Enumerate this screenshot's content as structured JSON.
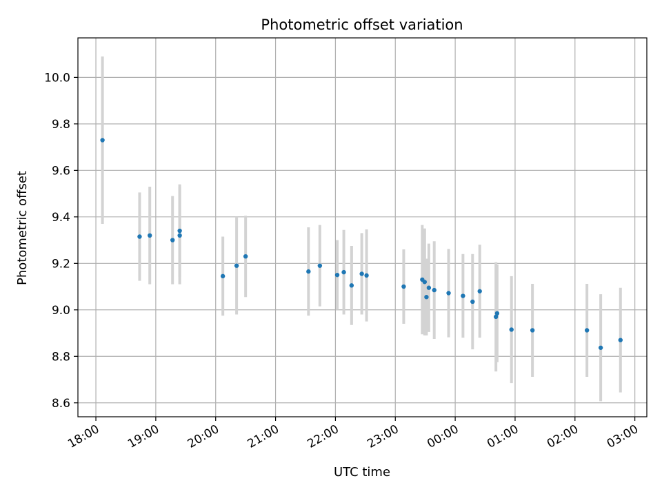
{
  "chart_data": {
    "type": "scatter",
    "title": "Photometric offset variation",
    "xlabel": "UTC time",
    "ylabel": "Photometric offset",
    "grid": true,
    "x_tick_labels": [
      "18:00",
      "19:00",
      "20:00",
      "21:00",
      "22:00",
      "23:00",
      "00:00",
      "01:00",
      "02:00",
      "03:00"
    ],
    "y_tick_labels": [
      "8.6",
      "8.8",
      "9.0",
      "9.2",
      "9.4",
      "9.6",
      "9.8",
      "10.0"
    ],
    "x_unit": "hours since 18:00 UTC",
    "xlim": [
      -0.3,
      9.2
    ],
    "ylim": [
      8.54,
      10.17
    ],
    "colors": {
      "points": "#1f77b4",
      "errorbars": "#d3d3d3",
      "grid": "#b0b0b0"
    },
    "series": [
      {
        "points": [
          {
            "x": 0.11,
            "y": 9.73,
            "err": 0.36
          },
          {
            "x": 0.73,
            "y": 9.315,
            "err": 0.19
          },
          {
            "x": 0.9,
            "y": 9.32,
            "err": 0.21
          },
          {
            "x": 1.28,
            "y": 9.3,
            "err": 0.19
          },
          {
            "x": 1.4,
            "y": 9.32,
            "err": 0.21
          },
          {
            "x": 1.4,
            "y": 9.34,
            "err": 0.2
          },
          {
            "x": 2.12,
            "y": 9.145,
            "err": 0.17
          },
          {
            "x": 2.35,
            "y": 9.19,
            "err": 0.21
          },
          {
            "x": 2.5,
            "y": 9.23,
            "err": 0.175
          },
          {
            "x": 3.55,
            "y": 9.165,
            "err": 0.19
          },
          {
            "x": 3.74,
            "y": 9.19,
            "err": 0.175
          },
          {
            "x": 4.03,
            "y": 9.15,
            "err": 0.15
          },
          {
            "x": 4.14,
            "y": 9.162,
            "err": 0.182
          },
          {
            "x": 4.27,
            "y": 9.105,
            "err": 0.17
          },
          {
            "x": 4.44,
            "y": 9.155,
            "err": 0.175
          },
          {
            "x": 4.52,
            "y": 9.148,
            "err": 0.198
          },
          {
            "x": 5.14,
            "y": 9.1,
            "err": 0.16
          },
          {
            "x": 5.45,
            "y": 9.13,
            "err": 0.235
          },
          {
            "x": 5.49,
            "y": 9.12,
            "err": 0.23
          },
          {
            "x": 5.52,
            "y": 9.055,
            "err": 0.165
          },
          {
            "x": 5.56,
            "y": 9.095,
            "err": 0.19
          },
          {
            "x": 5.65,
            "y": 9.085,
            "err": 0.21
          },
          {
            "x": 5.89,
            "y": 9.072,
            "err": 0.19
          },
          {
            "x": 6.13,
            "y": 9.06,
            "err": 0.18
          },
          {
            "x": 6.29,
            "y": 9.035,
            "err": 0.205
          },
          {
            "x": 6.41,
            "y": 9.08,
            "err": 0.2
          },
          {
            "x": 6.68,
            "y": 8.97,
            "err": 0.235
          },
          {
            "x": 6.7,
            "y": 8.985,
            "err": 0.21
          },
          {
            "x": 6.94,
            "y": 8.915,
            "err": 0.23
          },
          {
            "x": 7.29,
            "y": 8.912,
            "err": 0.2
          },
          {
            "x": 8.2,
            "y": 8.912,
            "err": 0.2
          },
          {
            "x": 8.43,
            "y": 8.837,
            "err": 0.23
          },
          {
            "x": 8.76,
            "y": 8.87,
            "err": 0.225
          }
        ]
      }
    ]
  }
}
